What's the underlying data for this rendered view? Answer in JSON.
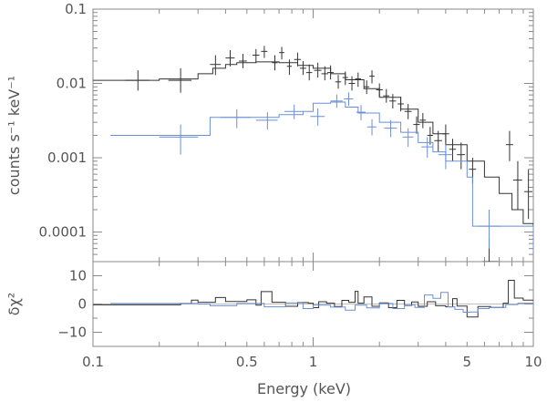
{
  "chart_data": {
    "type": "line",
    "panels": {
      "top": {
        "ylabel": "counts s⁻¹ keV⁻¹",
        "yscale": "log",
        "ylim": [
          4e-05,
          0.1
        ],
        "yticks": [
          {
            "value": 0.1,
            "label": "0.1"
          },
          {
            "value": 0.01,
            "label": "0.01"
          },
          {
            "value": 0.001,
            "label": "0.001"
          },
          {
            "value": 0.0001,
            "label": "0.0001"
          }
        ]
      },
      "bottom": {
        "ylabel": "δχ²",
        "ylim": [
          -15,
          15
        ],
        "yticks": [
          {
            "value": 10,
            "label": "10"
          },
          {
            "value": 0,
            "label": "0"
          },
          {
            "value": -10,
            "label": "−10"
          }
        ]
      }
    },
    "xlabel": "Energy (keV)",
    "xscale": "log",
    "xlim": [
      0.1,
      10
    ],
    "xticks": [
      {
        "value": 0.1,
        "label": "0.1"
      },
      {
        "value": 0.5,
        "label": "0.5"
      },
      {
        "value": 1,
        "label": "1"
      },
      {
        "value": 5,
        "label": "5"
      },
      {
        "value": 10,
        "label": "10"
      }
    ],
    "series": [
      {
        "name": "black",
        "color": "#333333",
        "model": [
          [
            0.1,
            0.011
          ],
          [
            0.2,
            0.0115
          ],
          [
            0.3,
            0.0135
          ],
          [
            0.35,
            0.016
          ],
          [
            0.4,
            0.018
          ],
          [
            0.45,
            0.019
          ],
          [
            0.55,
            0.0195
          ],
          [
            0.7,
            0.019
          ],
          [
            0.85,
            0.0175
          ],
          [
            1.0,
            0.016
          ],
          [
            1.2,
            0.0135
          ],
          [
            1.4,
            0.0112
          ],
          [
            1.7,
            0.0085
          ],
          [
            2.0,
            0.0065
          ],
          [
            2.5,
            0.0045
          ],
          [
            3.0,
            0.003
          ],
          [
            3.5,
            0.0021
          ],
          [
            4.0,
            0.0015
          ],
          [
            5.0,
            0.0009
          ],
          [
            6.0,
            0.00055
          ],
          [
            7.0,
            0.00033
          ],
          [
            8.0,
            0.0002
          ],
          [
            9.0,
            0.00013
          ],
          [
            10.0,
            9e-05
          ]
        ],
        "points": [
          {
            "x": 0.16,
            "y": 0.011,
            "xlo": 0.14,
            "xhi": 0.18,
            "ylo": 0.008,
            "yhi": 0.015
          },
          {
            "x": 0.25,
            "y": 0.011,
            "xlo": 0.22,
            "xhi": 0.28,
            "ylo": 0.0075,
            "yhi": 0.016
          },
          {
            "x": 0.36,
            "y": 0.018,
            "xlo": 0.34,
            "xhi": 0.38,
            "ylo": 0.013,
            "yhi": 0.024
          },
          {
            "x": 0.42,
            "y": 0.022,
            "xlo": 0.4,
            "xhi": 0.44,
            "ylo": 0.017,
            "yhi": 0.028
          },
          {
            "x": 0.48,
            "y": 0.02,
            "xlo": 0.46,
            "xhi": 0.5,
            "ylo": 0.016,
            "yhi": 0.025
          },
          {
            "x": 0.55,
            "y": 0.024,
            "xlo": 0.53,
            "xhi": 0.57,
            "ylo": 0.019,
            "yhi": 0.029
          },
          {
            "x": 0.6,
            "y": 0.027,
            "xlo": 0.58,
            "xhi": 0.62,
            "ylo": 0.022,
            "yhi": 0.032
          },
          {
            "x": 0.67,
            "y": 0.019,
            "xlo": 0.65,
            "xhi": 0.69,
            "ylo": 0.015,
            "yhi": 0.024
          },
          {
            "x": 0.72,
            "y": 0.026,
            "xlo": 0.7,
            "xhi": 0.74,
            "ylo": 0.021,
            "yhi": 0.031
          },
          {
            "x": 0.78,
            "y": 0.017,
            "xlo": 0.76,
            "xhi": 0.8,
            "ylo": 0.013,
            "yhi": 0.021
          },
          {
            "x": 0.85,
            "y": 0.021,
            "xlo": 0.82,
            "xhi": 0.88,
            "ylo": 0.017,
            "yhi": 0.026
          },
          {
            "x": 0.9,
            "y": 0.016,
            "xlo": 0.87,
            "xhi": 0.93,
            "ylo": 0.013,
            "yhi": 0.02
          },
          {
            "x": 0.96,
            "y": 0.014,
            "xlo": 0.93,
            "xhi": 0.99,
            "ylo": 0.011,
            "yhi": 0.018
          },
          {
            "x": 1.05,
            "y": 0.015,
            "xlo": 1.01,
            "xhi": 1.09,
            "ylo": 0.012,
            "yhi": 0.019
          },
          {
            "x": 1.13,
            "y": 0.0135,
            "xlo": 1.09,
            "xhi": 1.17,
            "ylo": 0.011,
            "yhi": 0.017
          },
          {
            "x": 1.2,
            "y": 0.014,
            "xlo": 1.16,
            "xhi": 1.24,
            "ylo": 0.0113,
            "yhi": 0.0175
          },
          {
            "x": 1.3,
            "y": 0.0105,
            "xlo": 1.26,
            "xhi": 1.34,
            "ylo": 0.0085,
            "yhi": 0.013
          },
          {
            "x": 1.4,
            "y": 0.012,
            "xlo": 1.36,
            "xhi": 1.44,
            "ylo": 0.0095,
            "yhi": 0.0145
          },
          {
            "x": 1.5,
            "y": 0.01,
            "xlo": 1.45,
            "xhi": 1.55,
            "ylo": 0.008,
            "yhi": 0.0125
          },
          {
            "x": 1.6,
            "y": 0.0115,
            "xlo": 1.55,
            "xhi": 1.65,
            "ylo": 0.009,
            "yhi": 0.014
          },
          {
            "x": 1.75,
            "y": 0.009,
            "xlo": 1.7,
            "xhi": 1.8,
            "ylo": 0.0072,
            "yhi": 0.011
          },
          {
            "x": 1.85,
            "y": 0.0125,
            "xlo": 1.8,
            "xhi": 1.9,
            "ylo": 0.01,
            "yhi": 0.015
          },
          {
            "x": 2.0,
            "y": 0.0082,
            "xlo": 1.93,
            "xhi": 2.07,
            "ylo": 0.0066,
            "yhi": 0.01
          },
          {
            "x": 2.15,
            "y": 0.0068,
            "xlo": 2.08,
            "xhi": 2.22,
            "ylo": 0.0055,
            "yhi": 0.0084
          },
          {
            "x": 2.3,
            "y": 0.0058,
            "xlo": 2.22,
            "xhi": 2.38,
            "ylo": 0.0046,
            "yhi": 0.0072
          },
          {
            "x": 2.5,
            "y": 0.0053,
            "xlo": 2.42,
            "xhi": 2.58,
            "ylo": 0.0042,
            "yhi": 0.0066
          },
          {
            "x": 2.7,
            "y": 0.0042,
            "xlo": 2.6,
            "xhi": 2.8,
            "ylo": 0.0033,
            "yhi": 0.0053
          },
          {
            "x": 2.95,
            "y": 0.0028,
            "xlo": 2.85,
            "xhi": 3.05,
            "ylo": 0.0021,
            "yhi": 0.0036
          },
          {
            "x": 3.15,
            "y": 0.0032,
            "xlo": 3.05,
            "xhi": 3.25,
            "ylo": 0.0025,
            "yhi": 0.004
          },
          {
            "x": 3.4,
            "y": 0.002,
            "xlo": 3.3,
            "xhi": 3.5,
            "ylo": 0.0015,
            "yhi": 0.0026
          },
          {
            "x": 3.7,
            "y": 0.0017,
            "xlo": 3.55,
            "xhi": 3.85,
            "ylo": 0.0012,
            "yhi": 0.0023
          },
          {
            "x": 4.0,
            "y": 0.0021,
            "xlo": 3.85,
            "xhi": 4.15,
            "ylo": 0.0016,
            "yhi": 0.0028
          },
          {
            "x": 4.3,
            "y": 0.0013,
            "xlo": 4.15,
            "xhi": 4.45,
            "ylo": 0.0009,
            "yhi": 0.0018
          },
          {
            "x": 4.7,
            "y": 0.0011,
            "xlo": 4.5,
            "xhi": 4.9,
            "ylo": 0.0007,
            "yhi": 0.0016
          },
          {
            "x": 5.3,
            "y": 0.0007,
            "xlo": 5.1,
            "xhi": 5.5,
            "ylo": 0.00045,
            "yhi": 0.001
          },
          {
            "x": 6.3,
            "y": 4e-05,
            "xlo": 5.9,
            "xhi": 6.9,
            "ylo": 2e-05,
            "yhi": 8e-05
          },
          {
            "x": 7.8,
            "y": 0.0015,
            "xlo": 7.5,
            "xhi": 8.1,
            "ylo": 0.0009,
            "yhi": 0.0023
          },
          {
            "x": 8.5,
            "y": 0.0005,
            "xlo": 8.1,
            "xhi": 8.9,
            "ylo": 0.0002,
            "yhi": 0.0009
          },
          {
            "x": 9.5,
            "y": 0.00035,
            "xlo": 9.1,
            "xhi": 9.9,
            "ylo": 0.00015,
            "yhi": 0.0007
          }
        ],
        "residual": [
          [
            0.1,
            -0.3
          ],
          [
            0.25,
            0.2
          ],
          [
            0.28,
            1.4
          ],
          [
            0.3,
            0.6
          ],
          [
            0.36,
            2.3
          ],
          [
            0.4,
            0.9
          ],
          [
            0.5,
            1.5
          ],
          [
            0.55,
            -0.4
          ],
          [
            0.58,
            4.4
          ],
          [
            0.65,
            0.6
          ],
          [
            0.75,
            -0.8
          ],
          [
            0.85,
            0.5
          ],
          [
            0.95,
            0.3
          ],
          [
            1.0,
            -1.3
          ],
          [
            1.06,
            0.8
          ],
          [
            1.15,
            0.3
          ],
          [
            1.25,
            -0.9
          ],
          [
            1.35,
            1.3
          ],
          [
            1.45,
            0.6
          ],
          [
            1.55,
            4.5
          ],
          [
            1.6,
            0.3
          ],
          [
            1.7,
            2.5
          ],
          [
            1.85,
            -0.8
          ],
          [
            2.0,
            0.4
          ],
          [
            2.2,
            -1.3
          ],
          [
            2.4,
            1.3
          ],
          [
            2.6,
            -0.5
          ],
          [
            2.8,
            0.7
          ],
          [
            3.0,
            -0.8
          ],
          [
            3.3,
            0.8
          ],
          [
            3.6,
            -0.6
          ],
          [
            4.0,
            -1.0
          ],
          [
            4.3,
            1.9
          ],
          [
            4.5,
            -0.7
          ],
          [
            5.0,
            -4.6
          ],
          [
            5.6,
            -0.9
          ],
          [
            6.4,
            -1.2
          ],
          [
            7.3,
            0.3
          ],
          [
            7.7,
            8.4
          ],
          [
            8.2,
            2.1
          ],
          [
            9.0,
            1.4
          ],
          [
            10.0,
            1.4
          ]
        ]
      },
      {
        "name": "blue",
        "color": "#6b8fd6",
        "model": [
          [
            0.12,
            0.002
          ],
          [
            0.2,
            0.002
          ],
          [
            0.3,
            0.002
          ],
          [
            0.34,
            0.0035
          ],
          [
            0.5,
            0.0035
          ],
          [
            0.7,
            0.0038
          ],
          [
            0.9,
            0.0042
          ],
          [
            1.0,
            0.0054
          ],
          [
            1.2,
            0.0056
          ],
          [
            1.4,
            0.0048
          ],
          [
            1.6,
            0.004
          ],
          [
            2.0,
            0.003
          ],
          [
            2.5,
            0.0022
          ],
          [
            3.0,
            0.0016
          ],
          [
            3.5,
            0.0012
          ],
          [
            4.0,
            0.0009
          ],
          [
            5.0,
            0.00055
          ],
          [
            5.3,
            0.00012
          ],
          [
            6.0,
            0.00012
          ],
          [
            10.0,
            5e-05
          ]
        ],
        "points": [
          {
            "x": 0.25,
            "y": 0.0019,
            "xlo": 0.2,
            "xhi": 0.3,
            "ylo": 0.0011,
            "yhi": 0.0028
          },
          {
            "x": 0.45,
            "y": 0.0035,
            "xlo": 0.38,
            "xhi": 0.52,
            "ylo": 0.0025,
            "yhi": 0.0045
          },
          {
            "x": 0.62,
            "y": 0.0032,
            "xlo": 0.55,
            "xhi": 0.69,
            "ylo": 0.0024,
            "yhi": 0.0041
          },
          {
            "x": 0.82,
            "y": 0.0042,
            "xlo": 0.74,
            "xhi": 0.9,
            "ylo": 0.0033,
            "yhi": 0.0052
          },
          {
            "x": 1.05,
            "y": 0.0036,
            "xlo": 0.97,
            "xhi": 1.13,
            "ylo": 0.0027,
            "yhi": 0.0046
          },
          {
            "x": 1.28,
            "y": 0.0058,
            "xlo": 1.2,
            "xhi": 1.36,
            "ylo": 0.0047,
            "yhi": 0.0071
          },
          {
            "x": 1.45,
            "y": 0.0062,
            "xlo": 1.38,
            "xhi": 1.52,
            "ylo": 0.005,
            "yhi": 0.0076
          },
          {
            "x": 1.65,
            "y": 0.0041,
            "xlo": 1.57,
            "xhi": 1.73,
            "ylo": 0.0032,
            "yhi": 0.0051
          },
          {
            "x": 1.85,
            "y": 0.0026,
            "xlo": 1.76,
            "xhi": 1.94,
            "ylo": 0.002,
            "yhi": 0.0033
          },
          {
            "x": 2.25,
            "y": 0.0025,
            "xlo": 2.1,
            "xhi": 2.4,
            "ylo": 0.0019,
            "yhi": 0.0032
          },
          {
            "x": 2.7,
            "y": 0.0019,
            "xlo": 2.55,
            "xhi": 2.85,
            "ylo": 0.0014,
            "yhi": 0.0025
          },
          {
            "x": 3.3,
            "y": 0.0014,
            "xlo": 3.1,
            "xhi": 3.5,
            "ylo": 0.001,
            "yhi": 0.0019
          },
          {
            "x": 4.0,
            "y": 0.0011,
            "xlo": 3.7,
            "xhi": 4.3,
            "ylo": 0.0007,
            "yhi": 0.0015
          },
          {
            "x": 6.3,
            "y": 0.00012,
            "xlo": 5.6,
            "xhi": 7.1,
            "ylo": 6e-05,
            "yhi": 0.0002
          }
        ],
        "residual": [
          [
            0.12,
            0.2
          ],
          [
            0.3,
            0.0
          ],
          [
            0.34,
            -0.6
          ],
          [
            0.45,
            0.2
          ],
          [
            0.6,
            -1.0
          ],
          [
            0.75,
            0.4
          ],
          [
            0.9,
            -1.6
          ],
          [
            1.0,
            -0.4
          ],
          [
            1.2,
            -1.1
          ],
          [
            1.4,
            -2.2
          ],
          [
            1.55,
            -0.4
          ],
          [
            1.75,
            -1.4
          ],
          [
            2.0,
            0.2
          ],
          [
            2.3,
            -1.6
          ],
          [
            2.6,
            -0.4
          ],
          [
            2.9,
            -1.2
          ],
          [
            3.2,
            3.2
          ],
          [
            3.5,
            2.0
          ],
          [
            3.8,
            4.1
          ],
          [
            4.1,
            -1.0
          ],
          [
            4.4,
            -1.9
          ],
          [
            4.8,
            -2.9
          ],
          [
            5.2,
            -2.8
          ],
          [
            5.6,
            -1.6
          ],
          [
            6.3,
            -1.2
          ],
          [
            7.5,
            -0.2
          ],
          [
            8.5,
            0.3
          ],
          [
            10.0,
            0.3
          ]
        ]
      }
    ]
  }
}
